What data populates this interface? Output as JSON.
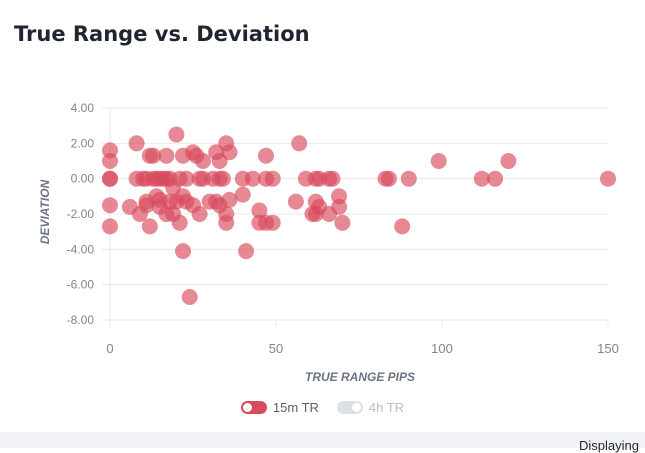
{
  "page": {
    "title": "True Range vs. Deviation",
    "footer_text": "Displaying"
  },
  "chart_data": {
    "type": "scatter",
    "title": "True Range vs. Deviation",
    "xlabel": "TRUE RANGE PIPS",
    "ylabel": "DEVIATION",
    "xlim": [
      0,
      150
    ],
    "ylim": [
      -8,
      4
    ],
    "x_ticks": [
      "0",
      "50",
      "100",
      "150"
    ],
    "y_ticks": [
      "4.00",
      "2.00",
      "0.00",
      "-2.00",
      "-4.00",
      "-6.00",
      "-8.00"
    ],
    "grid": "horizontal",
    "legend": "bottom-center",
    "series": [
      {
        "name": "15m TR",
        "color": "#d94a5c",
        "visible": true,
        "points": [
          [
            0,
            1.6
          ],
          [
            0,
            1.0
          ],
          [
            0,
            0
          ],
          [
            0,
            0
          ],
          [
            0,
            -1.5
          ],
          [
            0,
            -2.7
          ],
          [
            6,
            -1.6
          ],
          [
            8,
            2.0
          ],
          [
            8,
            0
          ],
          [
            9,
            -2.0
          ],
          [
            10,
            0
          ],
          [
            11,
            0
          ],
          [
            11,
            -1.5
          ],
          [
            11,
            -1.3
          ],
          [
            12,
            1.3
          ],
          [
            12,
            -2.7
          ],
          [
            13,
            0
          ],
          [
            13,
            1.3
          ],
          [
            14,
            0
          ],
          [
            14,
            -1.0
          ],
          [
            15,
            0
          ],
          [
            15,
            -1.2
          ],
          [
            15,
            -1.6
          ],
          [
            16,
            0
          ],
          [
            17,
            0
          ],
          [
            17,
            -2.0
          ],
          [
            17,
            1.3
          ],
          [
            18,
            0
          ],
          [
            18,
            -1.3
          ],
          [
            19,
            -0.5
          ],
          [
            19,
            -2.0
          ],
          [
            20,
            2.5
          ],
          [
            20,
            -1.3
          ],
          [
            21,
            -2.5
          ],
          [
            21,
            0
          ],
          [
            22,
            -4.1
          ],
          [
            22,
            1.3
          ],
          [
            22,
            -1.0
          ],
          [
            23,
            0
          ],
          [
            23,
            -1.3
          ],
          [
            24,
            -6.7
          ],
          [
            25,
            1.5
          ],
          [
            25,
            -1.5
          ],
          [
            26,
            1.3
          ],
          [
            27,
            0
          ],
          [
            27,
            -2.0
          ],
          [
            28,
            1.0
          ],
          [
            28,
            0
          ],
          [
            30,
            -1.3
          ],
          [
            31,
            0
          ],
          [
            32,
            1.5
          ],
          [
            32,
            -1.3
          ],
          [
            33,
            0
          ],
          [
            33,
            1.0
          ],
          [
            33,
            -1.5
          ],
          [
            34,
            0
          ],
          [
            35,
            2.0
          ],
          [
            35,
            -2.5
          ],
          [
            35,
            -2.0
          ],
          [
            36,
            1.5
          ],
          [
            36,
            -1.2
          ],
          [
            40,
            -0.9
          ],
          [
            40,
            0
          ],
          [
            41,
            -4.1
          ],
          [
            43,
            0
          ],
          [
            45,
            -1.8
          ],
          [
            45,
            -2.5
          ],
          [
            47,
            1.3
          ],
          [
            47,
            0
          ],
          [
            47,
            -2.5
          ],
          [
            49,
            -2.5
          ],
          [
            49,
            0
          ],
          [
            56,
            -1.3
          ],
          [
            57,
            2.0
          ],
          [
            59,
            0
          ],
          [
            61,
            -2.0
          ],
          [
            62,
            -2.0
          ],
          [
            62,
            -1.3
          ],
          [
            62,
            0
          ],
          [
            63,
            -1.6
          ],
          [
            63,
            0
          ],
          [
            66,
            0
          ],
          [
            66,
            -2.0
          ],
          [
            67,
            0
          ],
          [
            69,
            -1.0
          ],
          [
            69,
            -1.6
          ],
          [
            70,
            -2.5
          ],
          [
            83,
            0
          ],
          [
            84,
            0
          ],
          [
            88,
            -2.7
          ],
          [
            90,
            0
          ],
          [
            99,
            1.0
          ],
          [
            112,
            0
          ],
          [
            116,
            0
          ],
          [
            120,
            1.0
          ],
          [
            150,
            0
          ]
        ]
      },
      {
        "name": "4h TR",
        "color": "#c9ced6",
        "visible": false,
        "points": []
      }
    ]
  }
}
